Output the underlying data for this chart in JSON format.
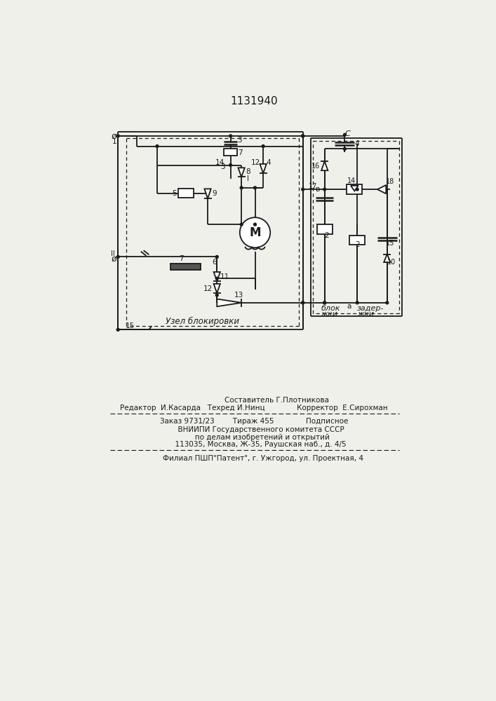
{
  "title": "1131940",
  "bg_color": "#f0f0eb",
  "line_color": "#1a1a1a",
  "text_color": "#1a1a1a",
  "bottom_text_line1": "                    Составитель Г.Плотникова",
  "bottom_text_line2": "Редактор  И.Касарда   Техред И.Нинц              Корректор  Е.Сирохман",
  "bottom_text_line3": "Заказ 9731/23        Тираж 455              Подписное",
  "bottom_text_line4": "      ВНИИПИ Государственного комитета СССР",
  "bottom_text_line5": "       по делам изобретений и открытий",
  "bottom_text_line6": "      113035, Москва, Ж-35, Раушская наб., д. 4/5",
  "bottom_text_line7": "        Филиал ПШП\"Патент\", г. Ужгород, ул. Проектная, 4"
}
